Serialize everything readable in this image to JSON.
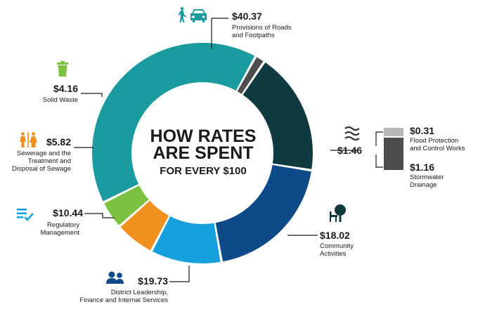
{
  "chart_data": {
    "type": "pie",
    "title_lines": [
      "HOW RATES",
      "ARE SPENT",
      "FOR EVERY $100"
    ],
    "slices": [
      {
        "value": 40.37,
        "label_value": "$40.37",
        "label_lines": [
          "Provisions of Roads",
          "and Footpaths"
        ],
        "color": "#1a9b9f",
        "icon": "pedestrian-car-icon"
      },
      {
        "value": 1.46,
        "label_value": "$1.46",
        "label_lines": [],
        "color": "#4d4d4d",
        "icon": "water-waves-icon"
      },
      {
        "value": 18.02,
        "label_value": "$18.02",
        "label_lines": [
          "Community",
          "Activities"
        ],
        "color": "#0f3a40",
        "icon": "park-bench-tree-icon"
      },
      {
        "value": 19.73,
        "label_value": "$19.73",
        "label_lines": [
          "District Leadership,",
          "Finance and Internal Services"
        ],
        "color": "#0d4a87",
        "icon": "people-icon"
      },
      {
        "value": 10.44,
        "label_value": "$10.44",
        "label_lines": [
          "Regulatory",
          "Management"
        ],
        "color": "#16a0de",
        "icon": "checklist-icon"
      },
      {
        "value": 5.82,
        "label_value": "$5.82",
        "label_lines": [
          "Sewerage and the",
          "Treatment and",
          "Disposal of Sewage"
        ],
        "color": "#f0901f",
        "icon": "restroom-icon"
      },
      {
        "value": 4.16,
        "label_value": "$4.16",
        "label_lines": [
          "Solid Waste"
        ],
        "color": "#7cc142",
        "icon": "bin-icon"
      }
    ],
    "breakdown": [
      {
        "value": 0.31,
        "label_value": "$0.31",
        "label_lines": [
          "Flood Protection",
          "and Control Works"
        ],
        "color": "#b8b8b8"
      },
      {
        "value": 1.16,
        "label_value": "$1.16",
        "label_lines": [
          "Stormwater",
          "Drainage"
        ],
        "color": "#4d4d4d"
      }
    ]
  }
}
